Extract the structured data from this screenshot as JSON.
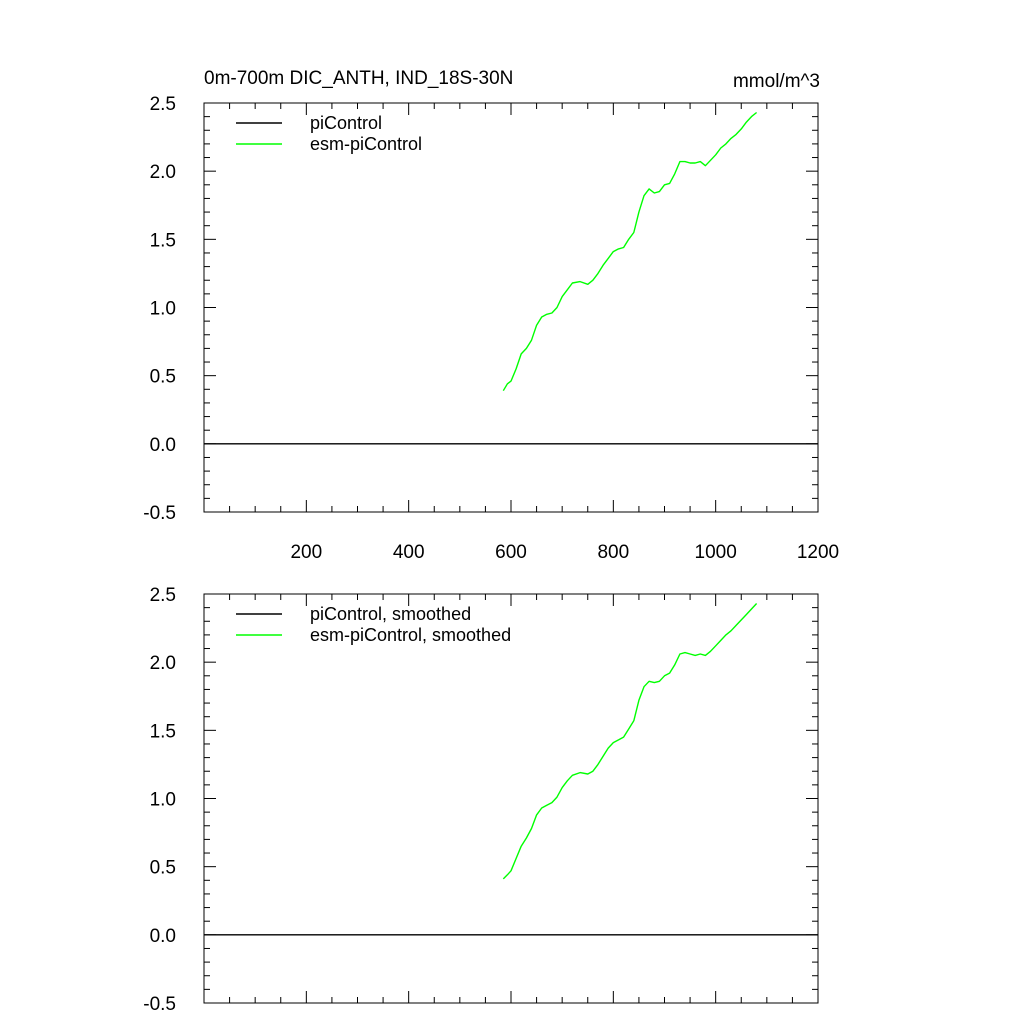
{
  "figure": {
    "title": "0m-700m DIC_ANTH, IND_18S-30N",
    "units": "mmol/m^3"
  },
  "chart_data": [
    {
      "type": "line",
      "xlim": [
        0,
        1200
      ],
      "ylim": [
        -0.5,
        2.5
      ],
      "x_ticks": [
        200,
        400,
        600,
        800,
        1000,
        1200
      ],
      "y_ticks": [
        -0.5,
        0.0,
        0.5,
        1.0,
        1.5,
        2.0,
        2.5
      ],
      "y_tick_labels": [
        "-0.5",
        "0.0",
        "0.5",
        "1.0",
        "1.5",
        "2.0",
        "2.5"
      ],
      "x_tick_labels": [
        "200",
        "400",
        "600",
        "800",
        "1000",
        "1200"
      ],
      "show_x_tick_labels": true,
      "grid": false,
      "legend_position": "top-left",
      "series": [
        {
          "name": "piControl",
          "color": "#000000",
          "x": [
            0,
            1200
          ],
          "y": [
            0.0,
            0.0
          ]
        },
        {
          "name": "esm-piControl",
          "color": "#00ff00",
          "x": [
            585,
            593,
            600,
            610,
            620,
            630,
            640,
            650,
            660,
            670,
            680,
            690,
            700,
            710,
            720,
            735,
            750,
            760,
            770,
            780,
            790,
            800,
            810,
            820,
            830,
            840,
            850,
            860,
            870,
            880,
            890,
            900,
            910,
            920,
            930,
            940,
            950,
            960,
            970,
            980,
            990,
            1000,
            1010,
            1020,
            1030,
            1040,
            1050,
            1060,
            1070,
            1080
          ],
          "y": [
            0.39,
            0.44,
            0.46,
            0.55,
            0.66,
            0.7,
            0.76,
            0.87,
            0.93,
            0.95,
            0.96,
            1.0,
            1.08,
            1.13,
            1.18,
            1.19,
            1.17,
            1.2,
            1.25,
            1.31,
            1.36,
            1.41,
            1.43,
            1.44,
            1.5,
            1.55,
            1.7,
            1.82,
            1.87,
            1.84,
            1.85,
            1.9,
            1.91,
            1.98,
            2.07,
            2.07,
            2.06,
            2.06,
            2.07,
            2.04,
            2.08,
            2.12,
            2.17,
            2.2,
            2.24,
            2.27,
            2.31,
            2.36,
            2.4,
            2.43
          ]
        }
      ]
    },
    {
      "type": "line",
      "xlim": [
        0,
        1200
      ],
      "ylim": [
        -0.5,
        2.5
      ],
      "x_ticks": [
        200,
        400,
        600,
        800,
        1000,
        1200
      ],
      "y_ticks": [
        -0.5,
        0.0,
        0.5,
        1.0,
        1.5,
        2.0,
        2.5
      ],
      "y_tick_labels": [
        "-0.5",
        "0.0",
        "0.5",
        "1.0",
        "1.5",
        "2.0",
        "2.5"
      ],
      "x_tick_labels": [],
      "show_x_tick_labels": false,
      "grid": false,
      "legend_position": "top-left",
      "series": [
        {
          "name": "piControl, smoothed",
          "color": "#000000",
          "x": [
            0,
            1200
          ],
          "y": [
            0.0,
            0.0
          ]
        },
        {
          "name": "esm-piControl, smoothed",
          "color": "#00ff00",
          "x": [
            585,
            593,
            600,
            610,
            620,
            630,
            640,
            650,
            660,
            670,
            680,
            690,
            700,
            710,
            720,
            735,
            750,
            760,
            770,
            780,
            790,
            800,
            810,
            820,
            830,
            840,
            850,
            860,
            870,
            880,
            890,
            900,
            910,
            920,
            930,
            940,
            950,
            960,
            970,
            980,
            990,
            1000,
            1010,
            1020,
            1030,
            1040,
            1050,
            1060,
            1070,
            1080
          ],
          "y": [
            0.41,
            0.44,
            0.47,
            0.56,
            0.65,
            0.71,
            0.78,
            0.88,
            0.93,
            0.95,
            0.97,
            1.01,
            1.08,
            1.13,
            1.17,
            1.19,
            1.18,
            1.2,
            1.25,
            1.31,
            1.37,
            1.41,
            1.43,
            1.45,
            1.51,
            1.57,
            1.72,
            1.82,
            1.86,
            1.85,
            1.86,
            1.9,
            1.92,
            1.98,
            2.06,
            2.07,
            2.06,
            2.05,
            2.06,
            2.05,
            2.08,
            2.12,
            2.16,
            2.2,
            2.23,
            2.27,
            2.31,
            2.35,
            2.39,
            2.43
          ]
        }
      ]
    }
  ]
}
